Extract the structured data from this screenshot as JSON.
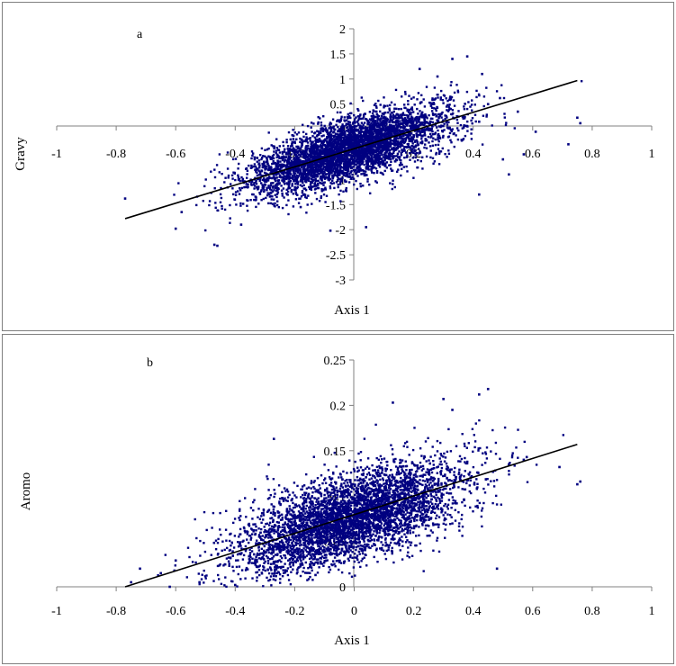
{
  "chart_data": [
    {
      "type": "scatter",
      "panel_label": "a",
      "xlabel": "Axis 1",
      "ylabel": "Gravy",
      "xlim": [
        -1,
        1
      ],
      "ylim": [
        -3,
        2
      ],
      "x_ticks": [
        "-1",
        "-0.8",
        "-0.6",
        "-0.4",
        "-0.2",
        "0",
        "0.2",
        "0.4",
        "0.6",
        "0.8",
        "1"
      ],
      "y_ticks": [
        "-3",
        "-2.5",
        "-2",
        "-1.5",
        "-1",
        "-0.5",
        "0",
        "0.5",
        "1",
        "1.5",
        "2"
      ],
      "point_color": "#000080",
      "trendline": {
        "x": [
          -0.77,
          0.75
        ],
        "y": [
          -1.78,
          0.97
        ],
        "color": "#000000"
      },
      "cloud": {
        "slope": 1.8,
        "intercept": -0.38,
        "x_mean": -0.02,
        "x_sd": 0.17,
        "noise_sd": 0.3,
        "n": 4500
      },
      "series": [
        {
          "x": [
            0.75,
            0.76,
            0.72,
            0.61,
            0.57,
            0.5,
            0.45,
            0.43,
            0.42,
            0.38,
            0.33,
            0.22,
            0.28,
            0.49,
            0.55,
            0.42,
            -0.77,
            -0.6,
            -0.58,
            -0.47,
            -0.46,
            -0.38,
            -0.08,
            0.04,
            -0.18,
            0.52
          ],
          "y": [
            0.23,
            0.12,
            -0.3,
            -0.05,
            -0.5,
            -0.6,
            0.5,
            1.1,
            -1.3,
            1.45,
            1.4,
            1.2,
            1.05,
            0.62,
            0.35,
            0.15,
            -1.38,
            -1.98,
            -1.65,
            -2.3,
            -2.32,
            -1.9,
            -2.02,
            -1.95,
            -1.55,
            -0.9
          ]
        }
      ]
    },
    {
      "type": "scatter",
      "panel_label": "b",
      "xlabel": "Axis 1",
      "ylabel": "Aromo",
      "xlim": [
        -1,
        1
      ],
      "ylim": [
        0,
        0.25
      ],
      "x_ticks": [
        "-1",
        "-0.8",
        "-0.6",
        "-0.4",
        "-0.2",
        "0",
        "0.2",
        "0.4",
        "0.6",
        "0.8",
        "1"
      ],
      "y_ticks": [
        "0",
        "0.05",
        "0.1",
        "0.15",
        "0.2",
        "0.25"
      ],
      "point_color": "#000080",
      "trendline": {
        "x": [
          -0.77,
          0.75
        ],
        "y": [
          0.0,
          0.157
        ],
        "color": "#000000"
      },
      "cloud": {
        "slope": 0.1,
        "intercept": 0.078,
        "x_mean": -0.01,
        "x_sd": 0.19,
        "noise_sd": 0.023,
        "n": 4500
      },
      "series": [
        {
          "x": [
            0.45,
            0.42,
            0.3,
            0.33,
            0.13,
            -0.27,
            -0.72,
            -0.6,
            -0.65,
            -0.75,
            0.76,
            0.75,
            0.69,
            0.58,
            0.57,
            0.52,
            0.48,
            -0.62,
            -0.52,
            -0.4,
            -0.13
          ],
          "y": [
            0.218,
            0.212,
            0.207,
            0.195,
            0.203,
            0.163,
            0.02,
            0.029,
            0.015,
            0.005,
            0.116,
            0.113,
            0.132,
            0.143,
            0.14,
            0.135,
            0.02,
            0.0,
            0.005,
            0.002,
            0.013
          ]
        }
      ]
    }
  ]
}
